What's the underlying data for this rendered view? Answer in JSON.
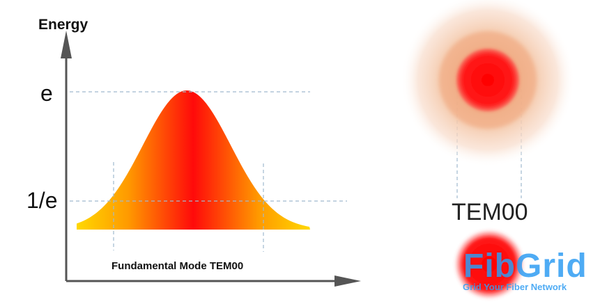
{
  "diagram": {
    "y_axis_label": "Energy",
    "level_peak_label": "e",
    "level_threshold_label": "1/e",
    "caption": "Fundamental Mode TEM00",
    "beam_mode_label": "TEM00"
  },
  "watermark": {
    "brand": "FibGrid",
    "tagline": "Grid Your Fiber Network"
  },
  "colors": {
    "curve_edge": "#ffd800",
    "curve_mid": "#ff6a00",
    "curve_center": "#ff0a0a",
    "guide_line": "#9fb9cf",
    "axis": "#555555",
    "halo_outer": "#f7dccb",
    "halo_mid": "#f2b28a",
    "spot_core": "#ff1414",
    "logo_blue": "#2f9cf2"
  }
}
